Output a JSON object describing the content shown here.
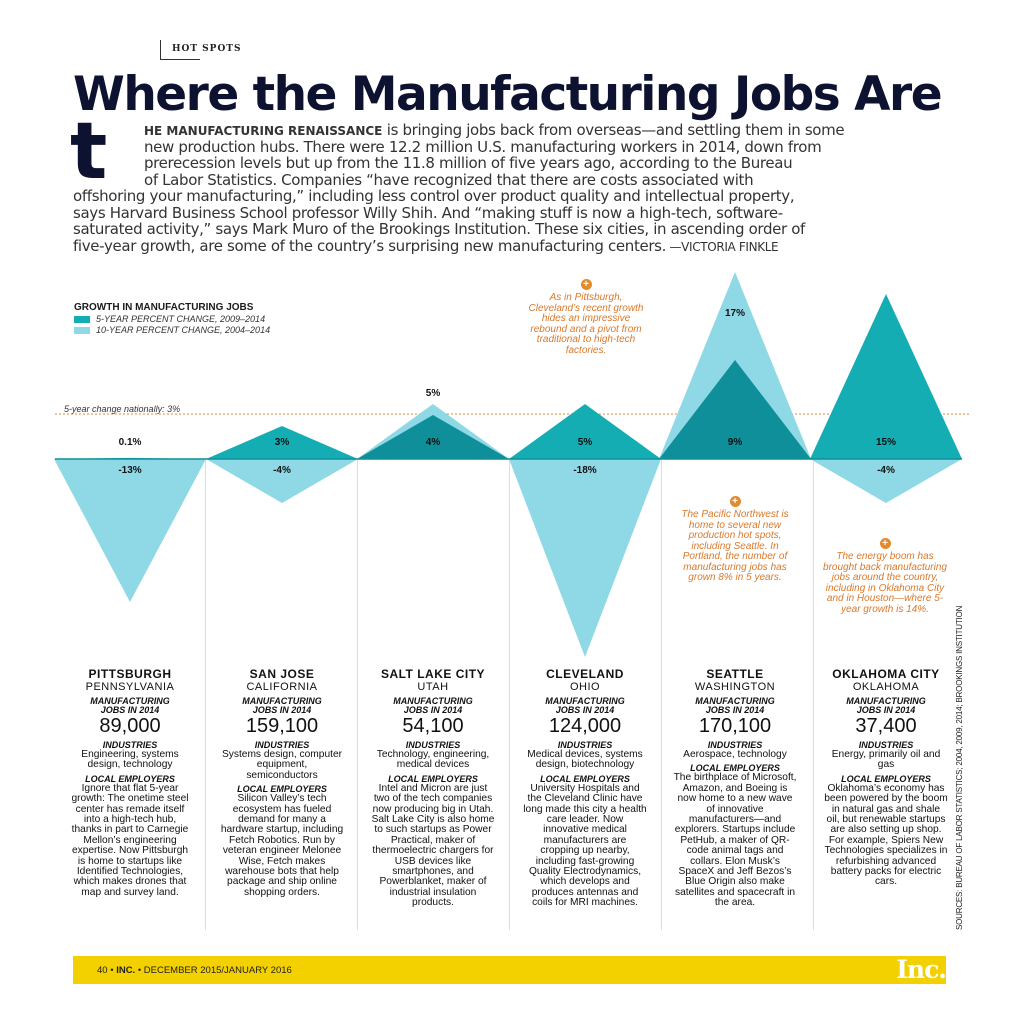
{
  "kicker": "HOT SPOTS",
  "title": "Where the Manufacturing Jobs Are",
  "dropcap": "t",
  "intro": {
    "lead": "HE MANUFACTURING RENAISSANCE",
    "line1_rest": " is bringing jobs back from overseas—and settling them in some",
    "line2": "new production hubs. There were 12.2 million U.S. manufacturing workers in 2014, down from",
    "line3": "prerecession levels but up from the 11.8 million of five years ago, according to the Bureau",
    "line4": "of Labor Statistics. Companies “have recognized that there are costs associated with",
    "line5": "offshoring your manufacturing,” including less control over product quality and intellectual property,",
    "line6": "says Harvard Business School professor Willy Shih. And “making stuff is now a high-tech, software-",
    "line7": "saturated activity,” says Mark Muro of the Brookings Institution. These six cities, in ascending order of",
    "line8": "five-year growth, are some of the country’s surprising new manufacturing centers.",
    "byline": " —VICTORIA FINKLE"
  },
  "colors": {
    "five_year": "#14adb3",
    "ten_year": "#8fd8e6",
    "overlap": "#0e8f9a",
    "national_line": "#e08a3c",
    "annotation": "#d9792a",
    "footer": "#f3d000",
    "title": "#0d1230"
  },
  "chart_data": {
    "type": "area",
    "title": "GROWTH IN MANUFACTURING JOBS",
    "legend": [
      {
        "name": "5-YEAR PERCENT CHANGE, 2009–2014",
        "color": "#14adb3"
      },
      {
        "name": "10-YEAR PERCENT CHANGE, 2004–2014",
        "color": "#8fd8e6"
      }
    ],
    "legend_position": "top-left",
    "national_label": "5-year change nationally: 3%",
    "national_value": 3,
    "categories": [
      "Pittsburgh",
      "San Jose",
      "Salt Lake City",
      "Cleveland",
      "Seattle",
      "Oklahoma City"
    ],
    "series": [
      {
        "name": "5-YEAR PERCENT CHANGE, 2009–2014",
        "values": [
          0.1,
          3,
          4,
          5,
          9,
          15
        ],
        "labels": [
          "0.1%",
          "3%",
          "4%",
          "5%",
          "9%",
          "15%"
        ]
      },
      {
        "name": "10-YEAR PERCENT CHANGE, 2004–2014",
        "values": [
          -13,
          -4,
          5,
          -18,
          17,
          -4
        ],
        "labels": [
          "-13%",
          "-4%",
          "5%",
          "-18%",
          "17%",
          "-4%"
        ]
      }
    ],
    "annotations": [
      "As in Pittsburgh, Cleveland’s recent growth hides an impressive rebound and a pivot from traditional to high-tech factories.",
      "The Pacific Northwest is home to several new production hot spots, including Seattle. In Portland, the number of manufacturing jobs has grown 8% in 5 years.",
      "The energy boom has brought back manufacturing jobs around the country, including in Oklahoma City and in Houston—where 5-year growth is 14%."
    ]
  },
  "cities": [
    {
      "city": "PITTSBURGH",
      "state": "PENNSYLVANIA",
      "jobs_label": "MANUFACTURING JOBS IN 2014",
      "jobs": "89,000",
      "industries_label": "INDUSTRIES",
      "industries": "Engineering, systems design, technology",
      "employers_label": "LOCAL EMPLOYERS",
      "employers": "Ignore that flat 5-year growth: The onetime steel center has remade itself into a high-tech hub, thanks in part to Carnegie Mellon’s engineering expertise. Now Pittsburgh is home to startups like Identified Technologies, which makes drones that map and survey land."
    },
    {
      "city": "SAN JOSE",
      "state": "CALIFORNIA",
      "jobs_label": "MANUFACTURING JOBS IN 2014",
      "jobs": "159,100",
      "industries_label": "INDUSTRIES",
      "industries": "Systems design, computer equipment, semiconductors",
      "employers_label": "LOCAL EMPLOYERS",
      "employers": "Silicon Valley’s tech ecosystem has fueled demand for many a hardware startup, including Fetch Robotics. Run by veteran engineer Melonee Wise, Fetch makes warehouse bots that help package and ship online shopping orders."
    },
    {
      "city": "SALT LAKE CITY",
      "state": "UTAH",
      "jobs_label": "MANUFACTURING JOBS IN 2014",
      "jobs": "54,100",
      "industries_label": "INDUSTRIES",
      "industries": "Technology, engineering, medical devices",
      "employers_label": "LOCAL EMPLOYERS",
      "employers": "Intel and Micron are just two of the tech companies now producing big in Utah. Salt Lake City is also home to such startups as Power Practical, maker of thermoelectric chargers for USB devices like smartphones, and Powerblanket, maker of industrial insulation products."
    },
    {
      "city": "CLEVELAND",
      "state": "OHIO",
      "jobs_label": "MANUFACTURING JOBS IN 2014",
      "jobs": "124,000",
      "industries_label": "INDUSTRIES",
      "industries": "Medical devices, systems design, biotechnology",
      "employers_label": "LOCAL EMPLOYERS",
      "employers": "University Hospitals and the Cleveland Clinic have long made this city a health care leader. Now innovative medical manufacturers are cropping up nearby, including fast-growing Quality Electrodynamics, which develops and produces antennas and coils for MRI machines."
    },
    {
      "city": "SEATTLE",
      "state": "WASHINGTON",
      "jobs_label": "MANUFACTURING JOBS IN 2014",
      "jobs": "170,100",
      "industries_label": "INDUSTRIES",
      "industries": "Aerospace, technology",
      "employers_label": "LOCAL EMPLOYERS",
      "employers": "The birthplace of Microsoft, Amazon, and Boeing is now home to a new wave of innovative manufacturers—and explorers. Startups include PetHub, a maker of QR-code animal tags and collars. Elon Musk’s SpaceX and Jeff Bezos’s Blue Origin also make satellites and spacecraft in the area."
    },
    {
      "city": "OKLAHOMA CITY",
      "state": "OKLAHOMA",
      "jobs_label": "MANUFACTURING JOBS IN 2014",
      "jobs": "37,400",
      "industries_label": "INDUSTRIES",
      "industries": "Energy, primarily oil and gas",
      "employers_label": "LOCAL EMPLOYERS",
      "employers": "Oklahoma’s economy has been powered by the boom in natural gas and shale oil, but renewable startups are also setting up shop. For example, Spiers New Technologies specializes in refurbishing advanced battery packs for electric cars."
    }
  ],
  "source": "SOURCES: BUREAU OF LABOR STATISTICS; 2004, 2009, 2014; BROOKINGS INSTITUTION",
  "footer": {
    "page": "40",
    "sep": " • ",
    "brand": "INC.",
    "issue": " • DECEMBER 2015/JANUARY 2016",
    "logo": "Inc."
  }
}
